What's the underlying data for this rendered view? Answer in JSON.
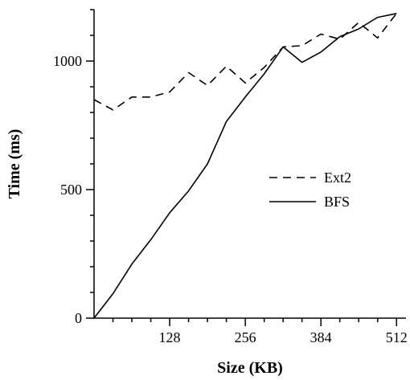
{
  "chart_data": {
    "type": "line",
    "title": "",
    "xlabel": "Size (KB)",
    "ylabel": "Time (ms)",
    "xlim": [
      0,
      528
    ],
    "ylim": [
      0,
      1200
    ],
    "x_ticks": [
      128,
      256,
      384,
      512
    ],
    "y_ticks": [
      0,
      500,
      1000
    ],
    "grid": false,
    "legend_position": "right-middle",
    "series": [
      {
        "name": "Ext2",
        "style": "dashed",
        "color": "#000000",
        "x": [
          0,
          32,
          64,
          96,
          128,
          160,
          192,
          224,
          256,
          288,
          320,
          352,
          384,
          416,
          448,
          480,
          512
        ],
        "y": [
          850,
          810,
          860,
          860,
          880,
          955,
          905,
          980,
          915,
          975,
          1055,
          1060,
          1105,
          1085,
          1150,
          1090,
          1185
        ]
      },
      {
        "name": "BFS",
        "style": "solid",
        "color": "#000000",
        "x": [
          0,
          32,
          64,
          96,
          128,
          160,
          192,
          224,
          256,
          288,
          320,
          352,
          384,
          416,
          448,
          480,
          512
        ],
        "y": [
          0,
          95,
          210,
          305,
          410,
          495,
          600,
          765,
          860,
          950,
          1055,
          995,
          1035,
          1095,
          1125,
          1170,
          1185
        ]
      }
    ]
  }
}
